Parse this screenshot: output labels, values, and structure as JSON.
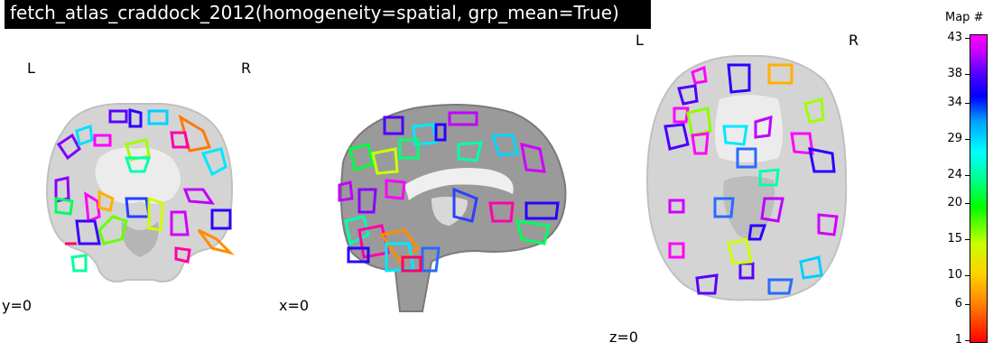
{
  "title": "fetch_atlas_craddock_2012(homogeneity=spatial, grp_mean=True)",
  "views": [
    {
      "name": "coronal",
      "cut_label": "y=0",
      "left": "L",
      "right": "R"
    },
    {
      "name": "sagittal",
      "cut_label": "x=0"
    },
    {
      "name": "axial",
      "cut_label": "z=0",
      "left": "L",
      "right": "R"
    }
  ],
  "colorbar": {
    "title": "Map #",
    "ticks": [
      "1",
      "6",
      "10",
      "15",
      "20",
      "24",
      "29",
      "34",
      "38",
      "43"
    ],
    "colormap": "gist_rainbow"
  }
}
